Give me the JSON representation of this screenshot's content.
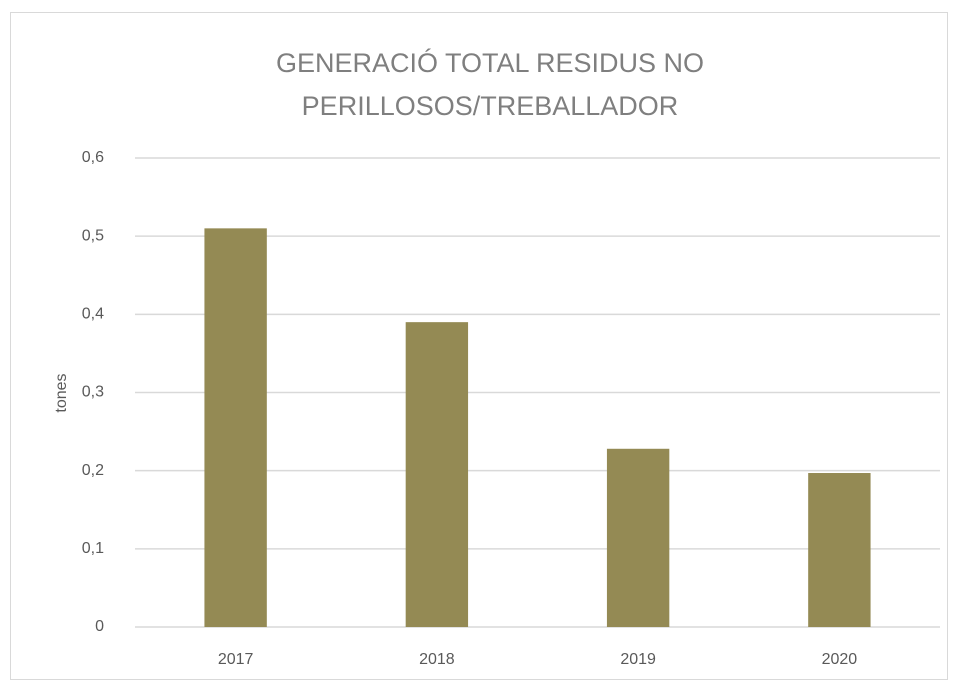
{
  "chart_data": {
    "type": "bar",
    "title": "GENERACIÓ TOTAL RESIDUS NO PERILLOSOS/TREBALLADOR",
    "y_label": "tones",
    "categories": [
      "2017",
      "2018",
      "2019",
      "2020"
    ],
    "values": [
      0.51,
      0.39,
      0.228,
      0.197
    ],
    "color": "#948a54",
    "ylim": [
      0,
      0.6
    ],
    "yticks": [
      0,
      {
        "value": 0.1,
        "label": "0,1"
      },
      {
        "value": 0.2,
        "label": "0,2"
      },
      {
        "value": 0.3,
        "label": "0,3"
      },
      {
        "value": 0.4,
        "label": "0,4"
      },
      {
        "value": 0.5,
        "label": "0,5"
      },
      {
        "value": 0.6,
        "label": "0,6"
      }
    ],
    "grid": true
  }
}
